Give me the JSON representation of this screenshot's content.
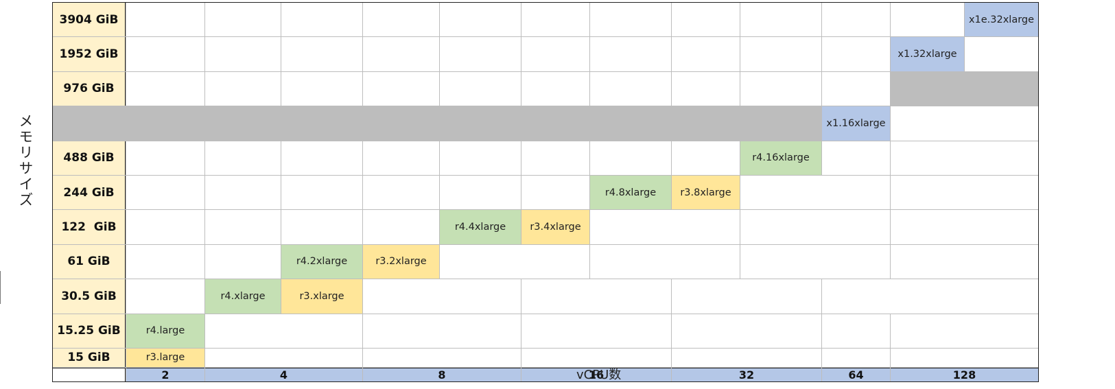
{
  "y_axis_label": "メモリサイズ",
  "x_axis_label": "vCPU数",
  "memory_rows": [
    "3904 GiB",
    "1952 GiB",
    "976 GiB",
    "488 GiB",
    "244 GiB",
    "122  GiB",
    "61 GiB",
    "30.5 GiB",
    "15.25 GiB",
    "15 GiB"
  ],
  "vcpu_groups": [
    "2",
    "4",
    "8",
    "16",
    "32",
    "64",
    "128"
  ],
  "instances": [
    {
      "name": "r3.large",
      "memory": "15 GiB",
      "vcpu": "2",
      "color": "#ffe699"
    },
    {
      "name": "r4.large",
      "memory": "15.25 GiB",
      "vcpu": "2",
      "color": "#c5e0b4"
    },
    {
      "name": "r4.xlarge",
      "memory": "30.5 GiB",
      "vcpu": "4",
      "color": "#c5e0b4"
    },
    {
      "name": "r3.xlarge",
      "memory": "30.5 GiB",
      "vcpu": "4",
      "color": "#ffe699"
    },
    {
      "name": "r4.2xlarge",
      "memory": "61 GiB",
      "vcpu": "8",
      "color": "#c5e0b4"
    },
    {
      "name": "r3.2xlarge",
      "memory": "61 GiB",
      "vcpu": "8",
      "color": "#ffe699"
    },
    {
      "name": "r4.4xlarge",
      "memory": "122  GiB",
      "vcpu": "16",
      "color": "#c5e0b4"
    },
    {
      "name": "r3.4xlarge",
      "memory": "122  GiB",
      "vcpu": "16",
      "color": "#ffe699"
    },
    {
      "name": "r4.8xlarge",
      "memory": "244 GiB",
      "vcpu": "32",
      "color": "#c5e0b4"
    },
    {
      "name": "r3.8xlarge",
      "memory": "244 GiB",
      "vcpu": "32",
      "color": "#ffe699"
    },
    {
      "name": "r4.16xlarge",
      "memory": "488 GiB",
      "vcpu": "64",
      "color": "#c5e0b4"
    },
    {
      "name": "x1.16xlarge",
      "memory": "976 GiB",
      "vcpu": "64",
      "color": "#b4c7e7"
    },
    {
      "name": "x1.32xlarge",
      "memory": "1952 GiB",
      "vcpu": "128",
      "color": "#b4c7e7"
    },
    {
      "name": "x1e.32xlarge",
      "memory": "3904 GiB",
      "vcpu": "128",
      "color": "#b4c7e7"
    }
  ],
  "colors": {
    "memory_header": "#fff2cc",
    "vcpu_header": "#b4c7e7",
    "r4": "#c5e0b4",
    "r3": "#ffe699",
    "x1": "#b4c7e7"
  }
}
